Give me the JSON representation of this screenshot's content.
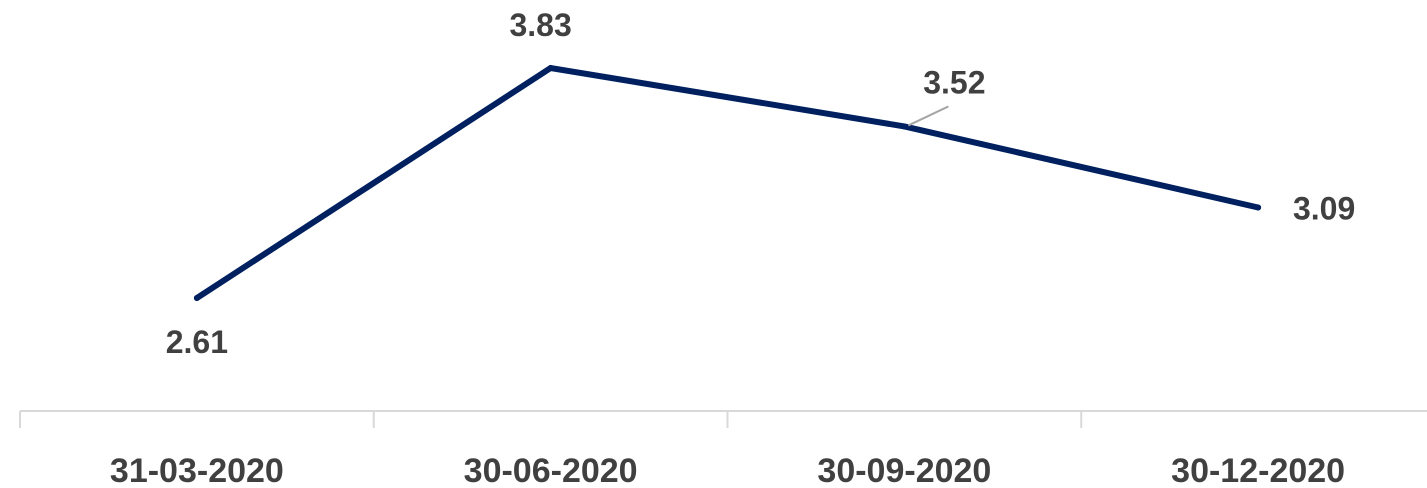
{
  "chart_data": {
    "type": "line",
    "categories": [
      "31-03-2020",
      "30-06-2020",
      "30-09-2020",
      "30-12-2020"
    ],
    "series": [
      {
        "values": [
          2.61,
          3.83,
          3.52,
          3.09
        ],
        "color": "#002060"
      }
    ],
    "data_labels": [
      "2.61",
      "3.83",
      "3.52",
      "3.09"
    ],
    "title": "",
    "xlabel": "",
    "ylabel": "",
    "y_axis_visible": false,
    "grid": false,
    "legend": "none",
    "axis_color": "#d9d9d9",
    "label_color": "#404040",
    "leader_line_color": "#a6a6a6"
  }
}
